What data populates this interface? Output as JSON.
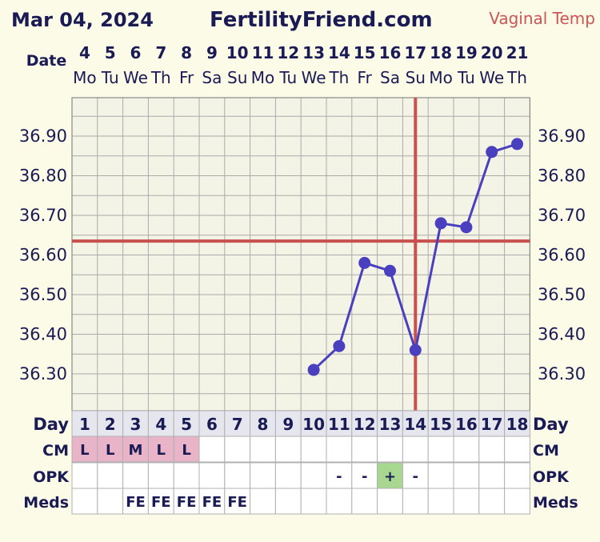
{
  "header": {
    "date": "Mar 04, 2024",
    "site": "FertilityFriend.com",
    "temp_type": "Vaginal Temp"
  },
  "labels": {
    "date": "Date",
    "day": "Day",
    "cm": "CM",
    "opk": "OPK",
    "meds": "Meds"
  },
  "chart_data": {
    "type": "line",
    "dates": [
      "4",
      "5",
      "6",
      "7",
      "8",
      "9",
      "10",
      "11",
      "12",
      "13",
      "14",
      "15",
      "16",
      "17",
      "18",
      "19",
      "20",
      "21"
    ],
    "weekdays": [
      "Mo",
      "Tu",
      "We",
      "Th",
      "Fr",
      "Sa",
      "Su",
      "Mo",
      "Tu",
      "We",
      "Th",
      "Fr",
      "Sa",
      "Su",
      "Mo",
      "Tu",
      "We",
      "Th"
    ],
    "cycle_days": [
      "1",
      "2",
      "3",
      "4",
      "5",
      "6",
      "7",
      "8",
      "9",
      "10",
      "11",
      "12",
      "13",
      "14",
      "15",
      "16",
      "17",
      "18"
    ],
    "y_ticks": [
      "36.90",
      "36.80",
      "36.70",
      "36.60",
      "36.50",
      "36.40",
      "36.30"
    ],
    "ylim": [
      36.2,
      36.99
    ],
    "series": [
      {
        "values": [
          null,
          null,
          null,
          null,
          null,
          null,
          null,
          null,
          null,
          36.31,
          36.37,
          36.58,
          36.56,
          36.36,
          36.68,
          36.67,
          36.86,
          36.88
        ],
        "color": "#4a3fbf"
      }
    ],
    "coverline": 36.635,
    "ovulation_day": "14",
    "cm": [
      "L",
      "L",
      "M",
      "L",
      "L",
      "",
      "",
      "",
      "",
      "",
      "",
      "",
      "",
      "",
      "",
      "",
      "",
      ""
    ],
    "opk": [
      "",
      "",
      "",
      "",
      "",
      "",
      "",
      "",
      "",
      "",
      "-",
      "-",
      "+",
      "-",
      "",
      "",
      "",
      ""
    ],
    "meds": [
      "",
      "",
      "FE",
      "FE",
      "FE",
      "FE",
      "FE",
      "",
      "",
      "",
      "",
      "",
      "",
      "",
      "",
      "",
      "",
      ""
    ],
    "colors": {
      "line": "#4a3fbf",
      "coverline": "#c8504e",
      "cm_fill": "#e9b4c8",
      "opk_positive": "#a8d890",
      "grid": "#aaaaaa"
    }
  }
}
